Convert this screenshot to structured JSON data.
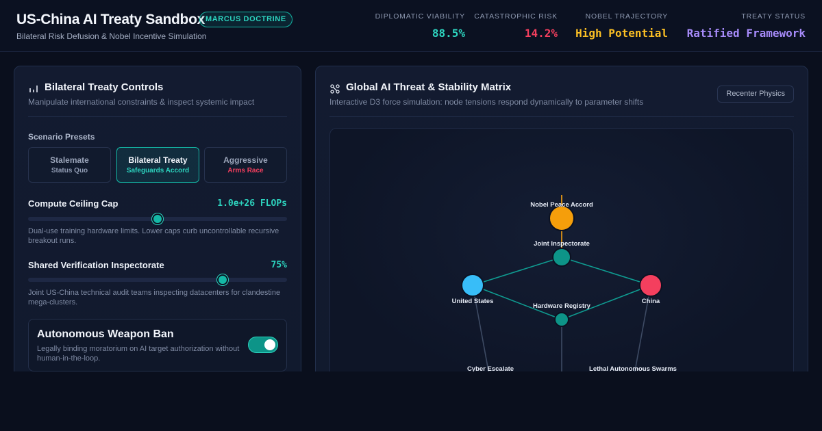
{
  "header": {
    "title": "US-China AI Treaty Sandbox",
    "badge": "MARCUS DOCTRINE",
    "subtitle": "Bilateral Risk Defusion & Nobel Incentive Simulation",
    "metrics": [
      {
        "label": "DIPLOMATIC VIABILITY",
        "value": "88.5%",
        "color": "#2dd4bf"
      },
      {
        "label": "CATASTROPHIC RISK",
        "value": "14.2%",
        "color": "#f43f5e"
      },
      {
        "label": "NOBEL TRAJECTORY",
        "value": "High Potential",
        "color": "#fbbf24"
      },
      {
        "label": "TREATY STATUS",
        "value": "Ratified Framework",
        "color": "#a78bfa"
      }
    ]
  },
  "left": {
    "title": "Bilateral Treaty Controls",
    "subtitle": "Manipulate international constraints & inspect systemic impact",
    "presets_label": "Scenario Presets",
    "presets": [
      {
        "title": "Stalemate",
        "sub": "Status Quo",
        "sub_color": "#8f9ab2",
        "active": false
      },
      {
        "title": "Bilateral Treaty",
        "sub": "Safeguards Accord",
        "sub_color": "#2dd4bf",
        "active": true
      },
      {
        "title": "Aggressive",
        "sub": "Arms Race",
        "sub_color": "#f43f5e",
        "active": false
      }
    ],
    "compute": {
      "label": "Compute Ceiling Cap",
      "value": "1.0e+26 FLOPs",
      "level": 0.5,
      "desc": "Dual-use training hardware limits. Lower caps curb uncontrollable recursive breakout runs."
    },
    "inspect": {
      "label": "Shared Verification Inspectorate",
      "value": "75%",
      "level": 0.75,
      "desc": "Joint US-China technical audit teams inspecting datacenters for clandestine mega-clusters."
    },
    "weapon_ban": {
      "title": "Autonomous Weapon Ban",
      "desc": "Legally binding moratorium on AI target authorization without human-in-the-loop.",
      "enabled": true
    }
  },
  "right": {
    "title": "Global AI Threat & Stability Matrix",
    "subtitle": "Interactive D3 force simulation: node tensions respond dynamically to parameter shifts",
    "recenter": "Recenter Physics",
    "nodes": [
      {
        "id": "nobel",
        "label": "Nobel Peace Accord",
        "color": "#f59e0b"
      },
      {
        "id": "joint",
        "label": "Joint Inspectorate",
        "color": "#0d9488"
      },
      {
        "id": "us",
        "label": "United States",
        "color": "#38bdf8"
      },
      {
        "id": "china",
        "label": "China",
        "color": "#f43f5e"
      },
      {
        "id": "hw",
        "label": "Hardware Registry",
        "color": "#0d9488"
      },
      {
        "id": "cyber",
        "label": "Cyber Escalate",
        "color": "#64748b"
      },
      {
        "id": "swarms",
        "label": "Lethal Autonomous Swarms",
        "color": "#64748b"
      }
    ]
  }
}
